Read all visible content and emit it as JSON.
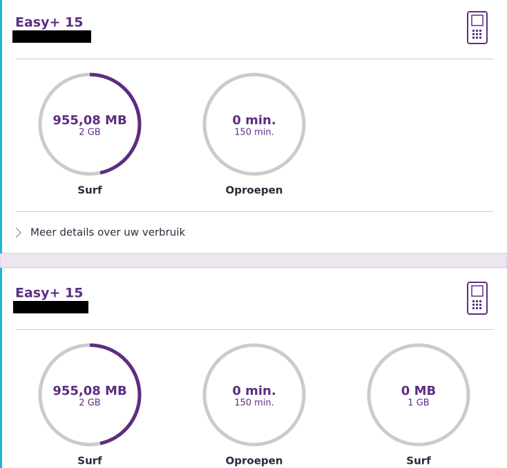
{
  "cards": [
    {
      "title": "Easy+ 15",
      "gauges": [
        {
          "value": 955.08,
          "value_label": "955,08 MB",
          "max": 2048,
          "max_label": "2 GB",
          "name": "Surf"
        },
        {
          "value": 0,
          "value_label": "0 min.",
          "max": 150,
          "max_label": "150 min.",
          "name": "Oproepen"
        }
      ],
      "details_link": "Meer details over uw verbruik"
    },
    {
      "title": "Easy+ 15",
      "gauges": [
        {
          "value": 955.08,
          "value_label": "955,08 MB",
          "max": 2048,
          "max_label": "2 GB",
          "name": "Surf"
        },
        {
          "value": 0,
          "value_label": "0 min.",
          "max": 150,
          "max_label": "150 min.",
          "name": "Oproepen"
        },
        {
          "value": 0,
          "value_label": "0 MB",
          "max": 1024,
          "max_label": "1 GB",
          "name": "Surf"
        }
      ]
    }
  ]
}
